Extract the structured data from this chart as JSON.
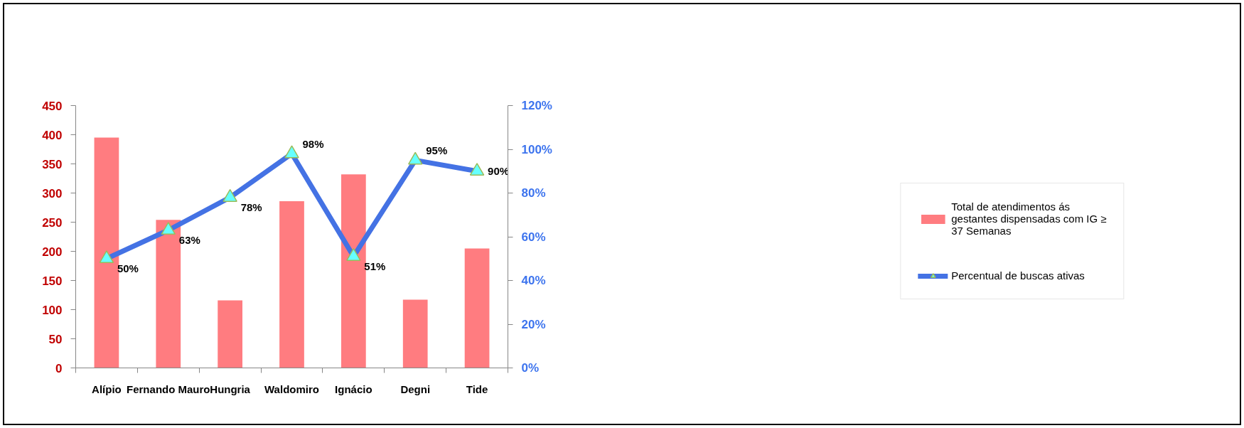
{
  "chart_data": {
    "type": "bar",
    "categories": [
      "Alípio",
      "Fernando Mauro",
      "Hungria",
      "Waldomiro",
      "Ignácio",
      "Degni",
      "Tide"
    ],
    "series": [
      {
        "name": "Total de atendimentos ás gestantes dispensadas com IG ≥ 37 Semanas",
        "color": "#ff7c80",
        "values": [
          395,
          254,
          116,
          286,
          332,
          117,
          205
        ]
      },
      {
        "name": "Percentual de buscas ativas",
        "type": "line",
        "axis": "y2",
        "color": "#4472e4",
        "marker": "triangle",
        "values": [
          50,
          63,
          78,
          98,
          51,
          95,
          90
        ],
        "value_labels": [
          "50%",
          "63%",
          "78%",
          "98%",
          "51%",
          "95%",
          "90%"
        ]
      }
    ],
    "ylim": [
      0,
      450
    ],
    "yticks": [
      0,
      50,
      100,
      150,
      200,
      250,
      300,
      350,
      400,
      450
    ],
    "y2lim": [
      0,
      120
    ],
    "y2ticks": [
      {
        "value": 0,
        "label": "0%"
      },
      {
        "value": 20,
        "label": "20%"
      },
      {
        "value": 40,
        "label": "40%"
      },
      {
        "value": 60,
        "label": "60%"
      },
      {
        "value": 80,
        "label": "80%"
      },
      {
        "value": 100,
        "label": "100%"
      },
      {
        "value": 120,
        "label": "120%"
      }
    ],
    "legend": "right"
  }
}
